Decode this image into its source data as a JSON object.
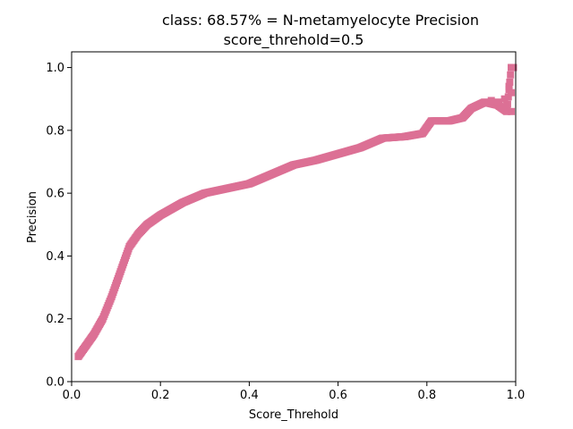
{
  "chart_data": {
    "type": "scatter",
    "title": "class: 68.57% = N-metamyelocyte Precision",
    "subtitle": "score_threhold=0.5",
    "xlabel": "Score_Threhold",
    "ylabel": "Precision",
    "xlim": [
      0.0,
      1.0
    ],
    "ylim": [
      0.0,
      1.05
    ],
    "xticks": [
      "0.0",
      "0.2",
      "0.4",
      "0.6",
      "0.8",
      "1.0"
    ],
    "yticks": [
      "0.0",
      "0.2",
      "0.4",
      "0.6",
      "0.8",
      "1.0"
    ],
    "grid": false,
    "marker_color": "#dc7095",
    "series": [
      {
        "x": [
          0.015,
          0.03,
          0.05,
          0.07,
          0.09,
          0.11,
          0.13,
          0.15,
          0.17,
          0.2,
          0.25,
          0.3,
          0.35,
          0.4,
          0.45,
          0.5,
          0.55,
          0.6,
          0.65,
          0.7,
          0.75,
          0.79,
          0.81,
          0.85,
          0.88,
          0.9,
          0.93,
          0.96,
          0.98,
          0.99
        ],
        "y": [
          0.08,
          0.11,
          0.15,
          0.2,
          0.27,
          0.35,
          0.43,
          0.47,
          0.5,
          0.53,
          0.57,
          0.6,
          0.615,
          0.63,
          0.66,
          0.69,
          0.705,
          0.725,
          0.745,
          0.775,
          0.78,
          0.79,
          0.83,
          0.83,
          0.84,
          0.87,
          0.89,
          0.88,
          0.86,
          1.0
        ]
      }
    ]
  }
}
